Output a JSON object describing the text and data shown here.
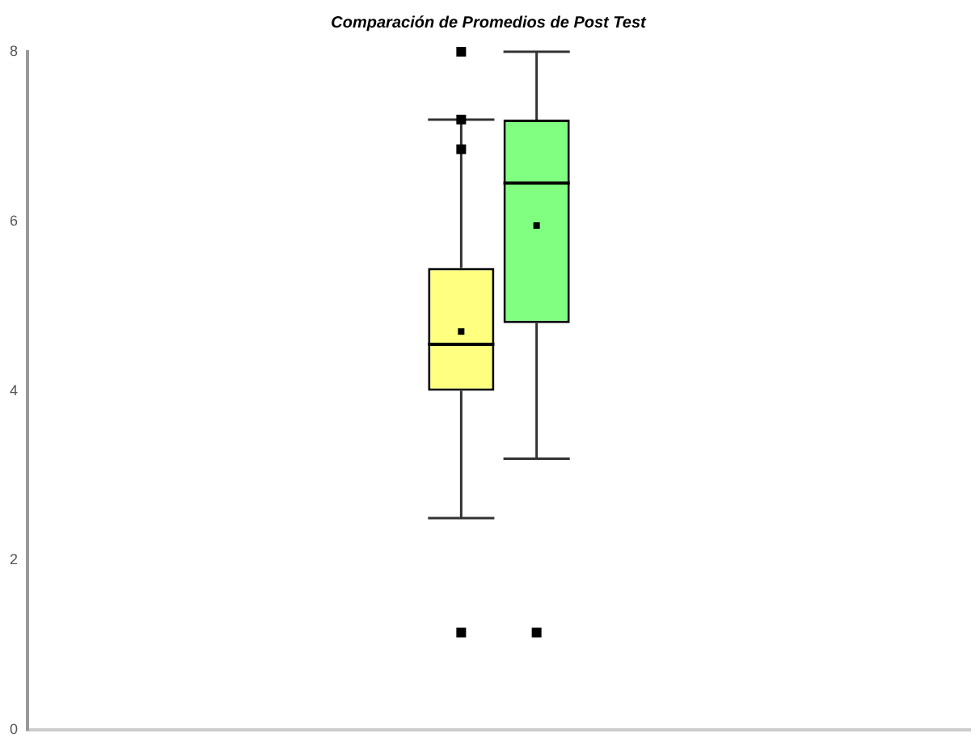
{
  "chart_data": {
    "type": "box",
    "title": "Comparación de Promedios de Post Test",
    "categories": [
      null
    ],
    "series": [
      {
        "color": "#ffff80",
        "boxes": [
          {
            "low": 2.5,
            "q1": 4.0,
            "median": 4.55,
            "q3": 5.45,
            "high": 7.2,
            "mean": 4.7,
            "outliers": [
              8.0,
              7.2,
              6.85,
              1.15
            ]
          }
        ]
      },
      {
        "color": "#80ff80",
        "boxes": [
          {
            "low": 3.2,
            "q1": 4.8,
            "median": 6.45,
            "q3": 7.2,
            "high": 8.0,
            "mean": 5.95,
            "outliers": [
              1.15
            ]
          }
        ]
      }
    ],
    "ylim": [
      0,
      8
    ],
    "yticks": [
      0,
      2,
      4,
      6,
      8
    ],
    "grid": false,
    "legend": false,
    "tick_labels": "y"
  }
}
